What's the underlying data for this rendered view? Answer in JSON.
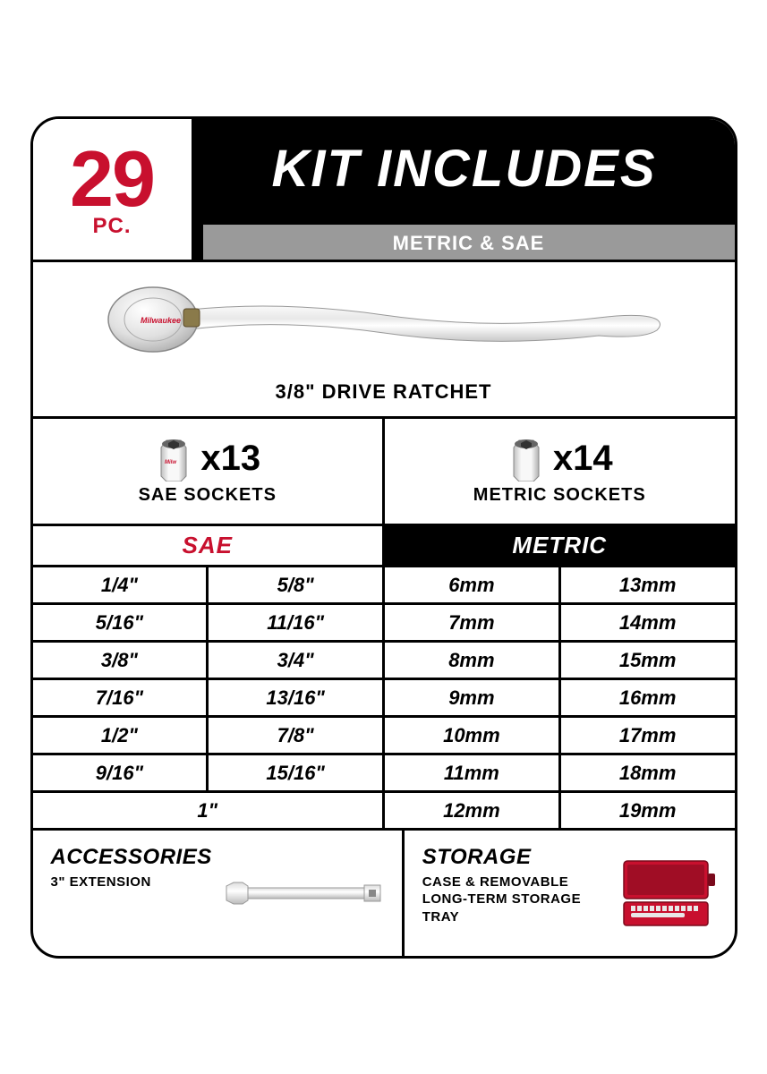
{
  "colors": {
    "brand_red": "#c8102e",
    "black": "#000000",
    "white": "#ffffff",
    "gray_bar": "#9a9a9a",
    "chrome_light": "#f5f5f5",
    "chrome_mid": "#d8d8d8",
    "chrome_dark": "#a8a8a8"
  },
  "header": {
    "piece_count": "29",
    "piece_label": "PC.",
    "kit_title": "KIT INCLUDES",
    "subtitle": "METRIC & SAE"
  },
  "ratchet": {
    "label": "3/8\" DRIVE RATCHET"
  },
  "sockets": {
    "sae": {
      "count": "x13",
      "label": "SAE SOCKETS"
    },
    "metric": {
      "count": "x14",
      "label": "METRIC SOCKETS"
    }
  },
  "size_headers": {
    "sae": "SAE",
    "metric": "METRIC"
  },
  "sae_sizes": [
    [
      "1/4\"",
      "5/8\""
    ],
    [
      "5/16\"",
      "11/16\""
    ],
    [
      "3/8\"",
      "3/4\""
    ],
    [
      "7/16\"",
      "13/16\""
    ],
    [
      "1/2\"",
      "7/8\""
    ],
    [
      "9/16\"",
      "15/16\""
    ],
    [
      "1\""
    ]
  ],
  "metric_sizes": [
    [
      "6mm",
      "13mm"
    ],
    [
      "7mm",
      "14mm"
    ],
    [
      "8mm",
      "15mm"
    ],
    [
      "9mm",
      "16mm"
    ],
    [
      "10mm",
      "17mm"
    ],
    [
      "11mm",
      "18mm"
    ],
    [
      "12mm",
      "19mm"
    ]
  ],
  "accessories": {
    "title": "ACCESSORIES",
    "desc": "3\" EXTENSION"
  },
  "storage": {
    "title": "STORAGE",
    "desc": "CASE & REMOVABLE LONG-TERM STORAGE TRAY"
  }
}
